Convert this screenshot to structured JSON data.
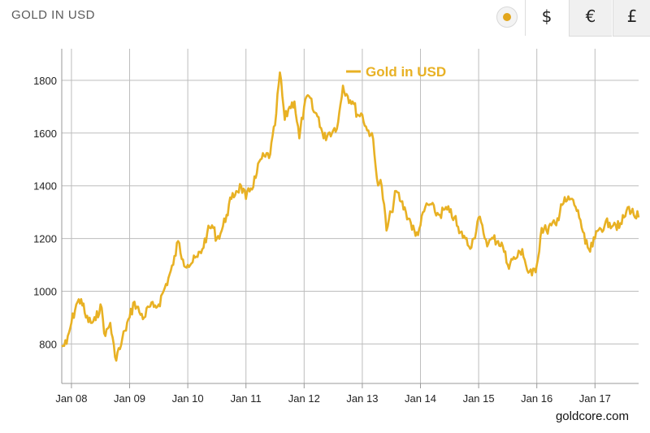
{
  "header": {
    "title": "GOLD IN USD"
  },
  "toolbar": {
    "coin_icon": "gold-coin-icon",
    "currencies": [
      {
        "symbol": "$",
        "active": true
      },
      {
        "symbol": "€",
        "active": false
      },
      {
        "symbol": "£",
        "active": false
      }
    ]
  },
  "colors": {
    "series": "#e8b124",
    "grid": "#bdbdbd",
    "axis": "#999999"
  },
  "credit": "goldcore.com",
  "chart_data": {
    "type": "line",
    "title": "",
    "xlabel": "",
    "ylabel": "",
    "x_ticks": [
      "Jan 08",
      "Jan 09",
      "Jan 10",
      "Jan 11",
      "Jan 12",
      "Jan 13",
      "Jan 14",
      "Jan 15",
      "Jan 16",
      "Jan 17"
    ],
    "y_ticks": [
      800,
      1000,
      1200,
      1400,
      1600,
      1800
    ],
    "xlim": [
      "2007-11",
      "2017-10"
    ],
    "ylim": [
      650,
      1920
    ],
    "grid": true,
    "legend": "top-center",
    "series": [
      {
        "name": "Gold in USD",
        "x": [
          "2007-11",
          "2007-12",
          "2008-01",
          "2008-02",
          "2008-03",
          "2008-04",
          "2008-05",
          "2008-06",
          "2008-07",
          "2008-08",
          "2008-09",
          "2008-10",
          "2008-11",
          "2008-12",
          "2009-01",
          "2009-02",
          "2009-03",
          "2009-04",
          "2009-05",
          "2009-06",
          "2009-07",
          "2009-08",
          "2009-09",
          "2009-10",
          "2009-11",
          "2009-12",
          "2010-01",
          "2010-02",
          "2010-03",
          "2010-04",
          "2010-05",
          "2010-06",
          "2010-07",
          "2010-08",
          "2010-09",
          "2010-10",
          "2010-11",
          "2010-12",
          "2011-01",
          "2011-02",
          "2011-03",
          "2011-04",
          "2011-05",
          "2011-06",
          "2011-07",
          "2011-08",
          "2011-09",
          "2011-10",
          "2011-11",
          "2011-12",
          "2012-01",
          "2012-02",
          "2012-03",
          "2012-04",
          "2012-05",
          "2012-06",
          "2012-07",
          "2012-08",
          "2012-09",
          "2012-10",
          "2012-11",
          "2012-12",
          "2013-01",
          "2013-02",
          "2013-03",
          "2013-04",
          "2013-05",
          "2013-06",
          "2013-07",
          "2013-08",
          "2013-09",
          "2013-10",
          "2013-11",
          "2013-12",
          "2014-01",
          "2014-02",
          "2014-03",
          "2014-04",
          "2014-05",
          "2014-06",
          "2014-07",
          "2014-08",
          "2014-09",
          "2014-10",
          "2014-11",
          "2014-12",
          "2015-01",
          "2015-02",
          "2015-03",
          "2015-04",
          "2015-05",
          "2015-06",
          "2015-07",
          "2015-08",
          "2015-09",
          "2015-10",
          "2015-11",
          "2015-12",
          "2016-01",
          "2016-02",
          "2016-03",
          "2016-04",
          "2016-05",
          "2016-06",
          "2016-07",
          "2016-08",
          "2016-09",
          "2016-10",
          "2016-11",
          "2016-12",
          "2017-01",
          "2017-02",
          "2017-03",
          "2017-04",
          "2017-05",
          "2017-06",
          "2017-07",
          "2017-08",
          "2017-09",
          "2017-10"
        ],
        "y": [
          790,
          800,
          880,
          950,
          970,
          900,
          880,
          890,
          950,
          830,
          880,
          750,
          780,
          850,
          900,
          960,
          920,
          900,
          940,
          940,
          950,
          1000,
          1050,
          1100,
          1190,
          1120,
          1100,
          1110,
          1130,
          1160,
          1220,
          1250,
          1200,
          1230,
          1290,
          1350,
          1380,
          1400,
          1350,
          1390,
          1430,
          1500,
          1510,
          1520,
          1630,
          1830,
          1650,
          1700,
          1720,
          1580,
          1700,
          1740,
          1680,
          1660,
          1580,
          1600,
          1610,
          1640,
          1780,
          1740,
          1720,
          1670,
          1670,
          1610,
          1600,
          1430,
          1400,
          1230,
          1300,
          1380,
          1340,
          1300,
          1260,
          1210,
          1250,
          1320,
          1330,
          1300,
          1290,
          1310,
          1300,
          1280,
          1220,
          1210,
          1170,
          1200,
          1280,
          1220,
          1180,
          1200,
          1190,
          1170,
          1100,
          1120,
          1130,
          1160,
          1080,
          1060,
          1100,
          1240,
          1230,
          1250,
          1250,
          1330,
          1340,
          1350,
          1320,
          1270,
          1180,
          1150,
          1200,
          1240,
          1250,
          1260,
          1260,
          1240,
          1280,
          1320,
          1290,
          1280
        ]
      }
    ]
  }
}
